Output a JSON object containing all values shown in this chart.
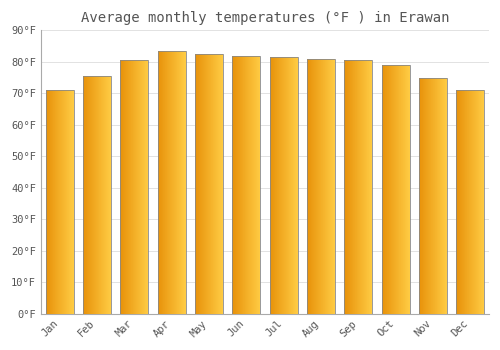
{
  "title": "Average monthly temperatures (°F ) in Erawan",
  "months": [
    "Jan",
    "Feb",
    "Mar",
    "Apr",
    "May",
    "Jun",
    "Jul",
    "Aug",
    "Sep",
    "Oct",
    "Nov",
    "Dec"
  ],
  "values": [
    71,
    75.5,
    80.5,
    83.5,
    82.5,
    82,
    81.5,
    81,
    80.5,
    79,
    75,
    71
  ],
  "bar_color_left": "#E8920A",
  "bar_color_right": "#FFCC44",
  "bar_edge_color": "#888888",
  "background_color": "#FFFFFF",
  "plot_bg_color": "#FFFFFF",
  "grid_color": "#DDDDDD",
  "text_color": "#555555",
  "title_fontsize": 10,
  "tick_fontsize": 7.5,
  "ylim": [
    0,
    90
  ],
  "yticks": [
    0,
    10,
    20,
    30,
    40,
    50,
    60,
    70,
    80,
    90
  ],
  "ytick_labels": [
    "0°F",
    "10°F",
    "20°F",
    "30°F",
    "40°F",
    "50°F",
    "60°F",
    "70°F",
    "80°F",
    "90°F"
  ],
  "bar_width": 0.75,
  "gradient_steps": 100
}
